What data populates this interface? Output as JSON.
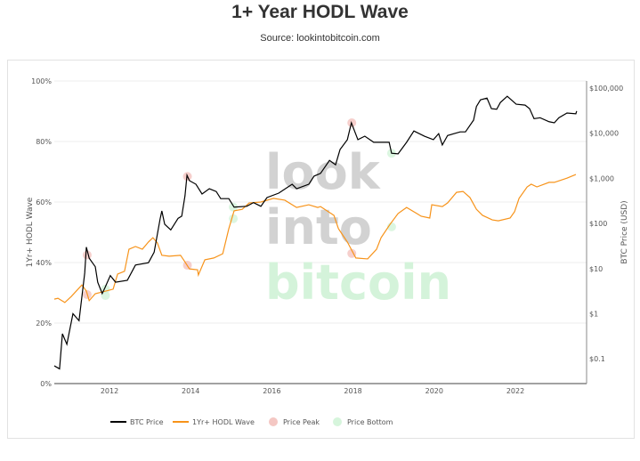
{
  "title": "1+ Year HODL Wave",
  "source": "Source: lookintobitcoin.com",
  "watermark": [
    "look",
    "into",
    "bitcoin"
  ],
  "chart_data": {
    "type": "line",
    "title": "1+ Year HODL Wave",
    "ylabel": "1Yr+ HODL Wave",
    "y2label": "BTC Price (USD)",
    "ylim": [
      0,
      100
    ],
    "y2lim_log": [
      0.028,
      145000
    ],
    "xlim": [
      2010.6,
      2023.75
    ],
    "yticks": [
      "0%",
      "20%",
      "40%",
      "60%",
      "80%",
      "100%"
    ],
    "y2ticks": [
      "$0.1",
      "$1",
      "$10",
      "$100",
      "$1,000",
      "$10,000",
      "$100,000"
    ],
    "xticks": [
      "2012",
      "2014",
      "2016",
      "2018",
      "2020",
      "2022"
    ],
    "grid": true,
    "legend_position": "bottom",
    "legend": [
      "BTC Price",
      "1Yr+ HODL Wave",
      "Price Peak",
      "Price Bottom"
    ],
    "colors": {
      "price": "#000000",
      "hodl": "#f7931a",
      "peak": "#f4c7c3",
      "bottom": "#d6f5dc"
    },
    "btc_price": [
      [
        2010.64,
        0.07
      ],
      [
        2010.77,
        0.06
      ],
      [
        2010.84,
        0.36
      ],
      [
        2010.95,
        0.21
      ],
      [
        2011.1,
        1.0
      ],
      [
        2011.25,
        0.7
      ],
      [
        2011.39,
        8
      ],
      [
        2011.43,
        30
      ],
      [
        2011.5,
        17
      ],
      [
        2011.65,
        11
      ],
      [
        2011.71,
        5
      ],
      [
        2011.82,
        2.8
      ],
      [
        2011.89,
        3.8
      ],
      [
        2012.02,
        7
      ],
      [
        2012.15,
        5
      ],
      [
        2012.44,
        5.5
      ],
      [
        2012.64,
        12
      ],
      [
        2012.96,
        13.5
      ],
      [
        2013.1,
        23
      ],
      [
        2013.25,
        130
      ],
      [
        2013.29,
        190
      ],
      [
        2013.36,
        96
      ],
      [
        2013.51,
        72
      ],
      [
        2013.69,
        130
      ],
      [
        2013.78,
        145
      ],
      [
        2013.86,
        410
      ],
      [
        2013.91,
        1170
      ],
      [
        2013.97,
        890
      ],
      [
        2014.13,
        740
      ],
      [
        2014.28,
        450
      ],
      [
        2014.46,
        590
      ],
      [
        2014.63,
        510
      ],
      [
        2014.74,
        355
      ],
      [
        2014.94,
        355
      ],
      [
        2015.07,
        230
      ],
      [
        2015.38,
        240
      ],
      [
        2015.55,
        290
      ],
      [
        2015.73,
        240
      ],
      [
        2015.88,
        375
      ],
      [
        2016.17,
        470
      ],
      [
        2016.5,
        740
      ],
      [
        2016.61,
        590
      ],
      [
        2016.91,
        740
      ],
      [
        2017.04,
        1120
      ],
      [
        2017.2,
        1290
      ],
      [
        2017.42,
        2500
      ],
      [
        2017.57,
        2000
      ],
      [
        2017.68,
        4350
      ],
      [
        2017.86,
        7200
      ],
      [
        2017.96,
        17000
      ],
      [
        2018.12,
        7200
      ],
      [
        2018.29,
        8600
      ],
      [
        2018.51,
        6300
      ],
      [
        2018.89,
        6300
      ],
      [
        2018.95,
        3600
      ],
      [
        2019.11,
        3500
      ],
      [
        2019.32,
        6300
      ],
      [
        2019.5,
        11200
      ],
      [
        2019.76,
        8600
      ],
      [
        2019.98,
        7200
      ],
      [
        2020.11,
        9800
      ],
      [
        2020.2,
        5500
      ],
      [
        2020.33,
        8900
      ],
      [
        2020.64,
        10700
      ],
      [
        2020.77,
        10700
      ],
      [
        2020.97,
        19500
      ],
      [
        2021.04,
        39000
      ],
      [
        2021.14,
        55000
      ],
      [
        2021.3,
        60000
      ],
      [
        2021.41,
        35000
      ],
      [
        2021.54,
        34000
      ],
      [
        2021.63,
        48000
      ],
      [
        2021.8,
        66000
      ],
      [
        2022.02,
        44000
      ],
      [
        2022.24,
        42000
      ],
      [
        2022.35,
        35000
      ],
      [
        2022.46,
        21000
      ],
      [
        2022.61,
        22000
      ],
      [
        2022.83,
        18000
      ],
      [
        2022.96,
        17000
      ],
      [
        2023.07,
        22000
      ],
      [
        2023.27,
        28000
      ],
      [
        2023.49,
        27000
      ],
      [
        2023.51,
        31000
      ]
    ],
    "hodl_wave_pct": [
      [
        2010.64,
        27.9
      ],
      [
        2010.73,
        28.2
      ],
      [
        2010.9,
        26.8
      ],
      [
        2011.06,
        28.8
      ],
      [
        2011.32,
        32.6
      ],
      [
        2011.43,
        30.6
      ],
      [
        2011.5,
        27.4
      ],
      [
        2011.65,
        29.7
      ],
      [
        2012.09,
        31.2
      ],
      [
        2012.2,
        36.2
      ],
      [
        2012.37,
        37.1
      ],
      [
        2012.48,
        44.4
      ],
      [
        2012.64,
        45.3
      ],
      [
        2012.81,
        44.4
      ],
      [
        2012.96,
        46.8
      ],
      [
        2013.07,
        48.2
      ],
      [
        2013.18,
        46.5
      ],
      [
        2013.29,
        42.4
      ],
      [
        2013.47,
        42.1
      ],
      [
        2013.75,
        42.4
      ],
      [
        2013.84,
        40.6
      ],
      [
        2013.97,
        37.9
      ],
      [
        2014.17,
        37.6
      ],
      [
        2014.19,
        35.9
      ],
      [
        2014.35,
        40.9
      ],
      [
        2014.57,
        41.5
      ],
      [
        2014.79,
        42.9
      ],
      [
        2014.94,
        51.2
      ],
      [
        2015.07,
        57.1
      ],
      [
        2015.27,
        57.6
      ],
      [
        2015.44,
        59.7
      ],
      [
        2015.73,
        60.0
      ],
      [
        2016.04,
        61.2
      ],
      [
        2016.32,
        60.6
      ],
      [
        2016.61,
        58.2
      ],
      [
        2016.91,
        59.1
      ],
      [
        2017.13,
        58.2
      ],
      [
        2017.2,
        58.5
      ],
      [
        2017.53,
        55.6
      ],
      [
        2017.64,
        51.2
      ],
      [
        2017.86,
        46.8
      ],
      [
        2018.07,
        41.5
      ],
      [
        2018.36,
        41.2
      ],
      [
        2018.58,
        44.4
      ],
      [
        2018.69,
        48.2
      ],
      [
        2018.91,
        52.6
      ],
      [
        2019.11,
        56.2
      ],
      [
        2019.32,
        58.2
      ],
      [
        2019.57,
        56.2
      ],
      [
        2019.68,
        55.3
      ],
      [
        2019.89,
        54.7
      ],
      [
        2019.94,
        59.1
      ],
      [
        2020.2,
        58.5
      ],
      [
        2020.33,
        59.7
      ],
      [
        2020.55,
        63.2
      ],
      [
        2020.71,
        63.5
      ],
      [
        2020.88,
        61.5
      ],
      [
        2021.04,
        57.6
      ],
      [
        2021.19,
        55.6
      ],
      [
        2021.43,
        54.1
      ],
      [
        2021.58,
        53.8
      ],
      [
        2021.87,
        54.7
      ],
      [
        2021.98,
        56.8
      ],
      [
        2022.09,
        61.2
      ],
      [
        2022.29,
        65.0
      ],
      [
        2022.39,
        65.9
      ],
      [
        2022.53,
        65.0
      ],
      [
        2022.83,
        66.5
      ],
      [
        2022.96,
        66.5
      ],
      [
        2023.27,
        67.9
      ],
      [
        2023.49,
        69.1
      ]
    ],
    "price_peaks": [
      {
        "x": 2011.45,
        "price": 20,
        "hodl": 29.4
      },
      {
        "x": 2013.92,
        "price": 1100,
        "hodl": 39.1
      },
      {
        "x": 2017.97,
        "price": 17000,
        "hodl": 43.0
      }
    ],
    "price_bottoms": [
      {
        "x": 2011.9,
        "price": 3.5,
        "hodl": 29.1
      },
      {
        "x": 2015.05,
        "price": 230,
        "hodl": 54.5
      },
      {
        "x": 2018.95,
        "price": 3600,
        "hodl": 51.8
      }
    ]
  }
}
